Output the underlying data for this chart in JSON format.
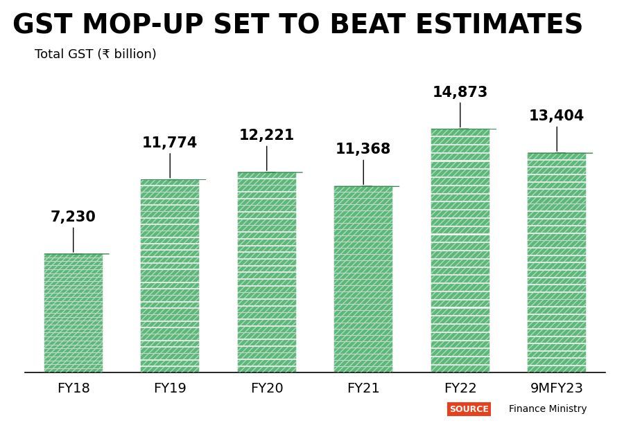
{
  "categories": [
    "FY18",
    "FY19",
    "FY20",
    "FY21",
    "FY22",
    "9MFY23"
  ],
  "values": [
    7230,
    11774,
    12221,
    11368,
    14873,
    13404
  ],
  "labels": [
    "7,230",
    "11,774",
    "12,221",
    "11,368",
    "14,873",
    "13,404"
  ],
  "title": "GST MOP-UP SET TO BEAT ESTIMATES",
  "subtitle": "Total GST (₹ billion)",
  "source_label": "SOURCE",
  "source_text": "Finance Ministry",
  "source_bg": "#e8401c",
  "bar_color_main": "#5cb87a",
  "bar_color_dark": "#3a8a52",
  "bar_color_light": "#7dd49a",
  "bar_color_stripe": "#4aaa65",
  "bar_color_top": "#8ecf9e",
  "hatch_color": "#ffffff",
  "bg_color": "#ffffff",
  "title_fontsize": 28,
  "subtitle_fontsize": 13,
  "label_fontsize": 15,
  "tick_fontsize": 14,
  "ylim_max": 18000,
  "bar_width": 0.6
}
